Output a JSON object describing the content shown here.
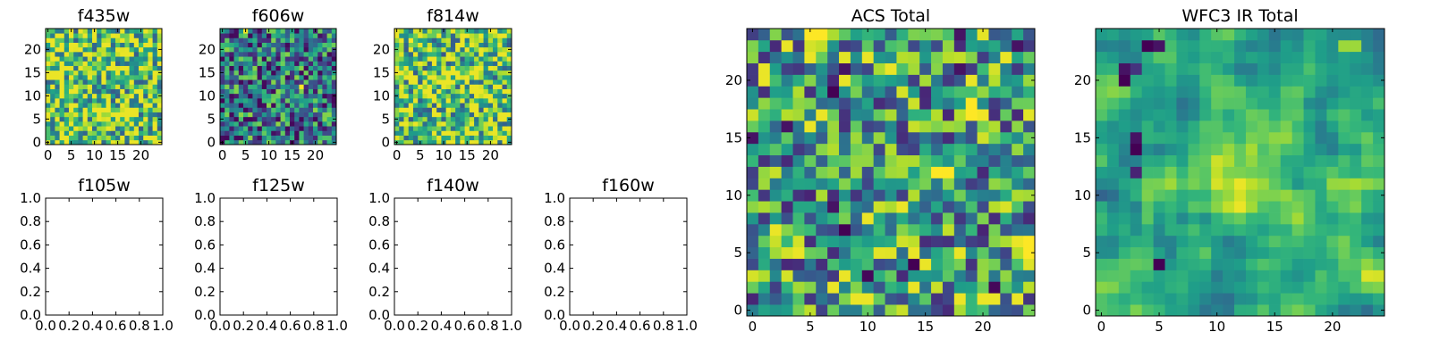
{
  "chart_data": [
    {
      "type": "heatmap",
      "title": "f435w",
      "colormap": "viridis",
      "grid_size": 25,
      "xlim": [
        -0.5,
        24.5
      ],
      "ylim": [
        -0.5,
        24.5
      ],
      "xticks": [
        0,
        5,
        10,
        15,
        20
      ],
      "yticks": [
        0,
        5,
        10,
        15,
        20
      ],
      "value_range": [
        0,
        1
      ],
      "mean_level": 0.74,
      "texture": "noisy",
      "hotspots": [
        {
          "x": 8,
          "y": 17,
          "v": 0.97
        },
        {
          "x": 17,
          "y": 15,
          "v": 0.93
        }
      ]
    },
    {
      "type": "heatmap",
      "title": "f606w",
      "colormap": "viridis",
      "grid_size": 25,
      "xlim": [
        -0.5,
        24.5
      ],
      "ylim": [
        -0.5,
        24.5
      ],
      "xticks": [
        0,
        5,
        10,
        15,
        20
      ],
      "yticks": [
        0,
        5,
        10,
        15,
        20
      ],
      "value_range": [
        0,
        1
      ],
      "mean_level": 0.38,
      "texture": "noisy",
      "hotspots": [
        {
          "x": 17,
          "y": 12,
          "v": 1.0
        },
        {
          "x": 5,
          "y": 24,
          "v": 0.98
        }
      ]
    },
    {
      "type": "heatmap",
      "title": "f814w",
      "colormap": "viridis",
      "grid_size": 25,
      "xlim": [
        -0.5,
        24.5
      ],
      "ylim": [
        -0.5,
        24.5
      ],
      "xticks": [
        0,
        5,
        10,
        15,
        20
      ],
      "yticks": [
        0,
        5,
        10,
        15,
        20
      ],
      "value_range": [
        0,
        1
      ],
      "mean_level": 0.72,
      "texture": "noisy",
      "hotspots": [
        {
          "x": 3,
          "y": 22,
          "v": 1.0
        },
        {
          "x": 20,
          "y": 4,
          "v": 0.95
        }
      ]
    },
    {
      "type": "empty",
      "title": "f105w",
      "xlim": [
        0,
        1
      ],
      "ylim": [
        0,
        1
      ],
      "xticks": [
        "0.0",
        "0.2",
        "0.4",
        "0.6",
        "0.8",
        "1.0"
      ],
      "yticks": [
        "0.0",
        "0.2",
        "0.4",
        "0.6",
        "0.8",
        "1.0"
      ]
    },
    {
      "type": "empty",
      "title": "f125w",
      "xlim": [
        0,
        1
      ],
      "ylim": [
        0,
        1
      ],
      "xticks": [
        "0.0",
        "0.2",
        "0.4",
        "0.6",
        "0.8",
        "1.0"
      ],
      "yticks": [
        "0.0",
        "0.2",
        "0.4",
        "0.6",
        "0.8",
        "1.0"
      ]
    },
    {
      "type": "empty",
      "title": "f140w",
      "xlim": [
        0,
        1
      ],
      "ylim": [
        0,
        1
      ],
      "xticks": [
        "0.0",
        "0.2",
        "0.4",
        "0.6",
        "0.8",
        "1.0"
      ],
      "yticks": [
        "0.0",
        "0.2",
        "0.4",
        "0.6",
        "0.8",
        "1.0"
      ]
    },
    {
      "type": "empty",
      "title": "f160w",
      "xlim": [
        0,
        1
      ],
      "ylim": [
        0,
        1
      ],
      "xticks": [
        "0.0",
        "0.2",
        "0.4",
        "0.6",
        "0.8",
        "1.0"
      ],
      "yticks": [
        "0.0",
        "0.2",
        "0.4",
        "0.6",
        "0.8",
        "1.0"
      ]
    },
    {
      "type": "heatmap",
      "title": "ACS Total",
      "colormap": "viridis",
      "grid_size": 25,
      "xlim": [
        -0.5,
        24.5
      ],
      "ylim": [
        -0.5,
        24.5
      ],
      "xticks": [
        0,
        5,
        10,
        15,
        20
      ],
      "yticks": [
        0,
        5,
        10,
        15,
        20
      ],
      "value_range": [
        0,
        1
      ],
      "mean_level": 0.55,
      "texture": "noisy",
      "hotspots": [
        {
          "x": 5,
          "y": 24,
          "v": 1.0
        },
        {
          "x": 6,
          "y": 24,
          "v": 1.0
        },
        {
          "x": 19,
          "y": 17,
          "v": 1.0
        },
        {
          "x": 19,
          "y": 18,
          "v": 1.0
        },
        {
          "x": 20,
          "y": 17,
          "v": 0.98
        },
        {
          "x": 16,
          "y": 12,
          "v": 1.0
        },
        {
          "x": 17,
          "y": 12,
          "v": 1.0
        },
        {
          "x": 24,
          "y": 6,
          "v": 1.0
        },
        {
          "x": 24,
          "y": 5,
          "v": 1.0
        },
        {
          "x": 23,
          "y": 6,
          "v": 0.97
        },
        {
          "x": 7,
          "y": 16,
          "v": 0.85
        },
        {
          "x": 0,
          "y": 15,
          "v": 0.05
        },
        {
          "x": 7,
          "y": 19,
          "v": 0.0
        },
        {
          "x": 8,
          "y": 21,
          "v": 0.05
        },
        {
          "x": 18,
          "y": 21,
          "v": 0.05
        },
        {
          "x": 8,
          "y": 7,
          "v": 0.0
        },
        {
          "x": 10,
          "y": 3,
          "v": 0.02
        },
        {
          "x": 14,
          "y": 4,
          "v": 0.0
        },
        {
          "x": 21,
          "y": 2,
          "v": 0.02
        },
        {
          "x": 3,
          "y": 16,
          "v": 0.05
        },
        {
          "x": 18,
          "y": 24,
          "v": 0.05
        },
        {
          "x": 23,
          "y": 23,
          "v": 0.05
        },
        {
          "x": 7,
          "y": 9,
          "v": 0.05
        },
        {
          "x": 20,
          "y": 7,
          "v": 0.1
        }
      ]
    },
    {
      "type": "heatmap",
      "title": "WFC3 IR Total",
      "colormap": "viridis",
      "grid_size": 25,
      "xlim": [
        -0.5,
        24.5
      ],
      "ylim": [
        -0.5,
        24.5
      ],
      "xticks": [
        0,
        5,
        10,
        15,
        20
      ],
      "yticks": [
        0,
        5,
        10,
        15,
        20
      ],
      "value_range": [
        0,
        1
      ],
      "mean_level": 0.6,
      "texture": "smooth",
      "blobs": [
        {
          "x": 12.5,
          "y": 11.5,
          "sigma": 2.2,
          "amp": 0.4
        }
      ],
      "hotspots": [
        {
          "x": 2,
          "y": 20,
          "v": 0.0
        },
        {
          "x": 2,
          "y": 21,
          "v": 0.05
        },
        {
          "x": 3,
          "y": 21,
          "v": 0.15
        },
        {
          "x": 4,
          "y": 23,
          "v": 0.0
        },
        {
          "x": 5,
          "y": 23,
          "v": 0.05
        },
        {
          "x": 3,
          "y": 14,
          "v": 0.0
        },
        {
          "x": 3,
          "y": 15,
          "v": 0.05
        },
        {
          "x": 3,
          "y": 12,
          "v": 0.1
        },
        {
          "x": 5,
          "y": 4,
          "v": 0.0
        },
        {
          "x": 21,
          "y": 23,
          "v": 0.85
        },
        {
          "x": 22,
          "y": 23,
          "v": 0.85
        }
      ]
    }
  ]
}
